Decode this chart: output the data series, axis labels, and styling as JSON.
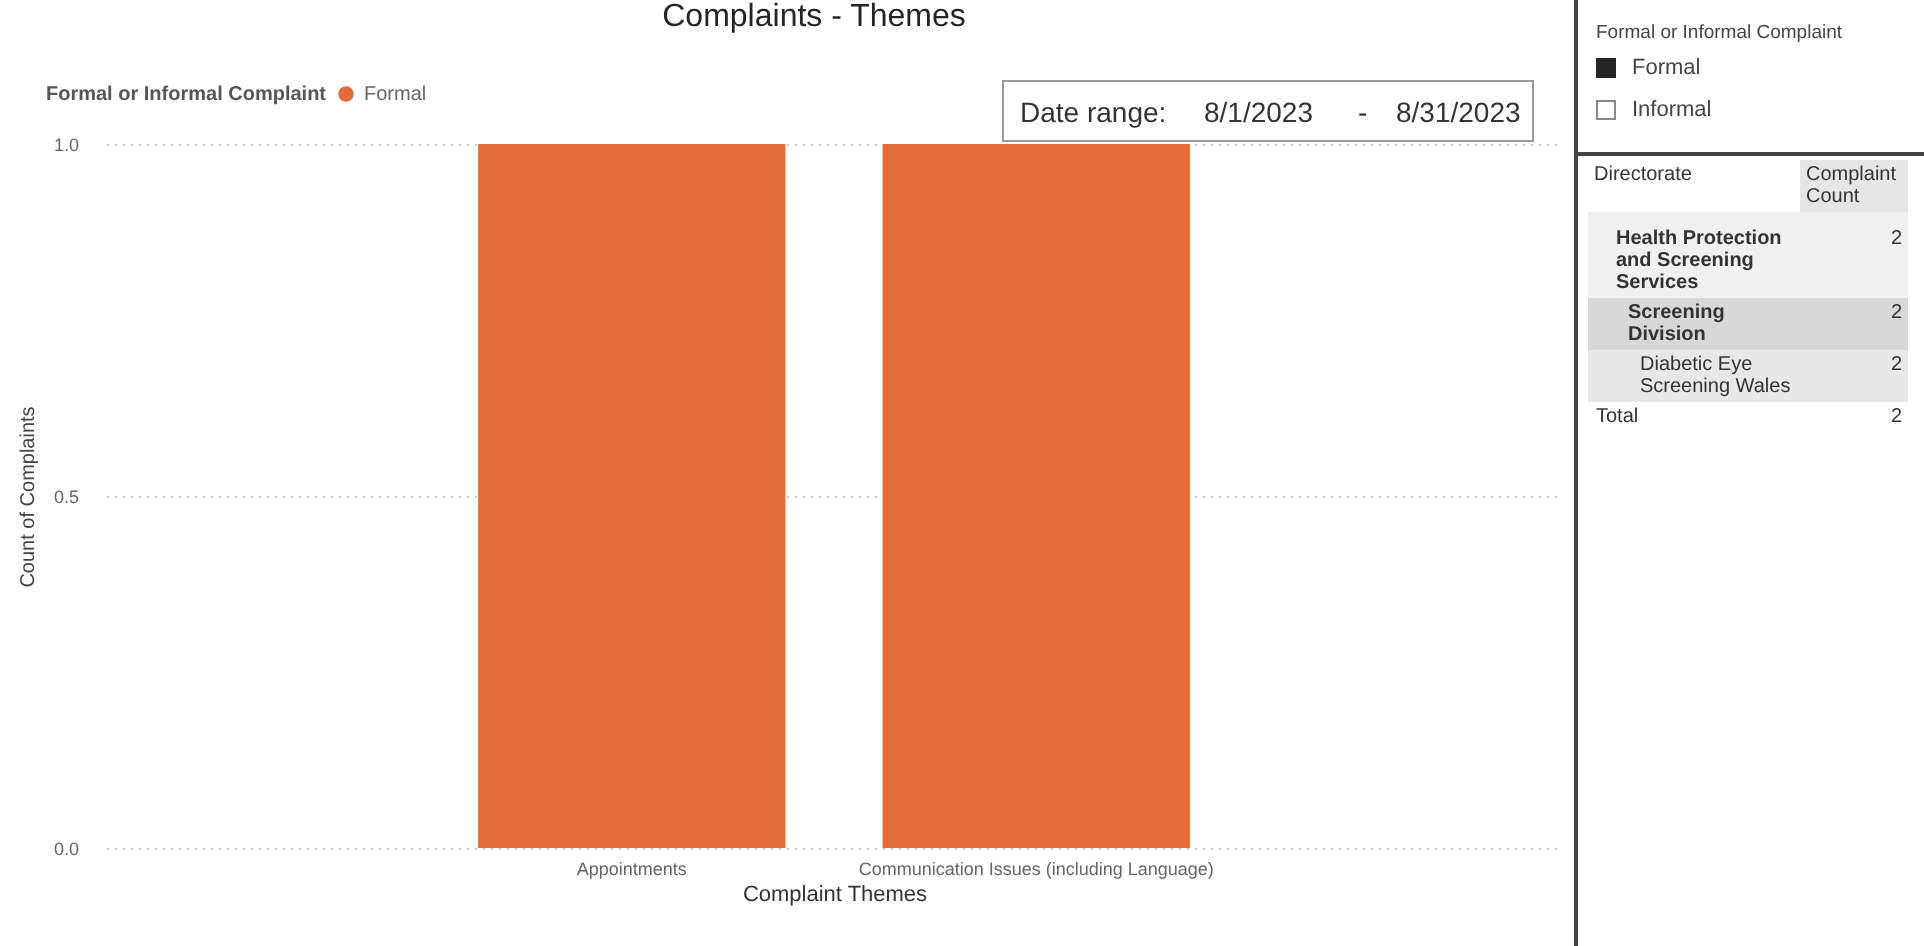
{
  "chart_data": [
    {
      "type": "bar",
      "title": "Complaints - Themes",
      "xlabel": "Complaint Themes",
      "ylabel": "Count of Complaints",
      "legend_title": "Formal or Informal Complaint",
      "categories": [
        "Appointments",
        "Communication Issues (including Language)"
      ],
      "series": [
        {
          "name": "Formal",
          "color": "#e46c38",
          "values": [
            1,
            1
          ]
        }
      ],
      "ylim": [
        0,
        1
      ],
      "yticks": [
        {
          "value": 0,
          "label": "0.0"
        },
        {
          "value": 0.5,
          "label": "0.5"
        },
        {
          "value": 1,
          "label": "1.0"
        }
      ],
      "grid": "y",
      "legend": "top left",
      "annotations": [
        "Date range:",
        "8/1/2023",
        "-",
        "8/31/2023"
      ]
    },
    {
      "type": "other",
      "title": "Formal or Informal Complaint",
      "annotations": [
        "Formal",
        "Informal"
      ],
      "xlabel": "Directorate",
      "ylabel": "Complaint Count",
      "categories": [
        "Health Protection and Screening Services",
        "Screening Division",
        "Diabetic Eye Screening Wales",
        "Total"
      ],
      "values": [
        2,
        2,
        2,
        2
      ],
      "data_labels": true
    }
  ]
}
